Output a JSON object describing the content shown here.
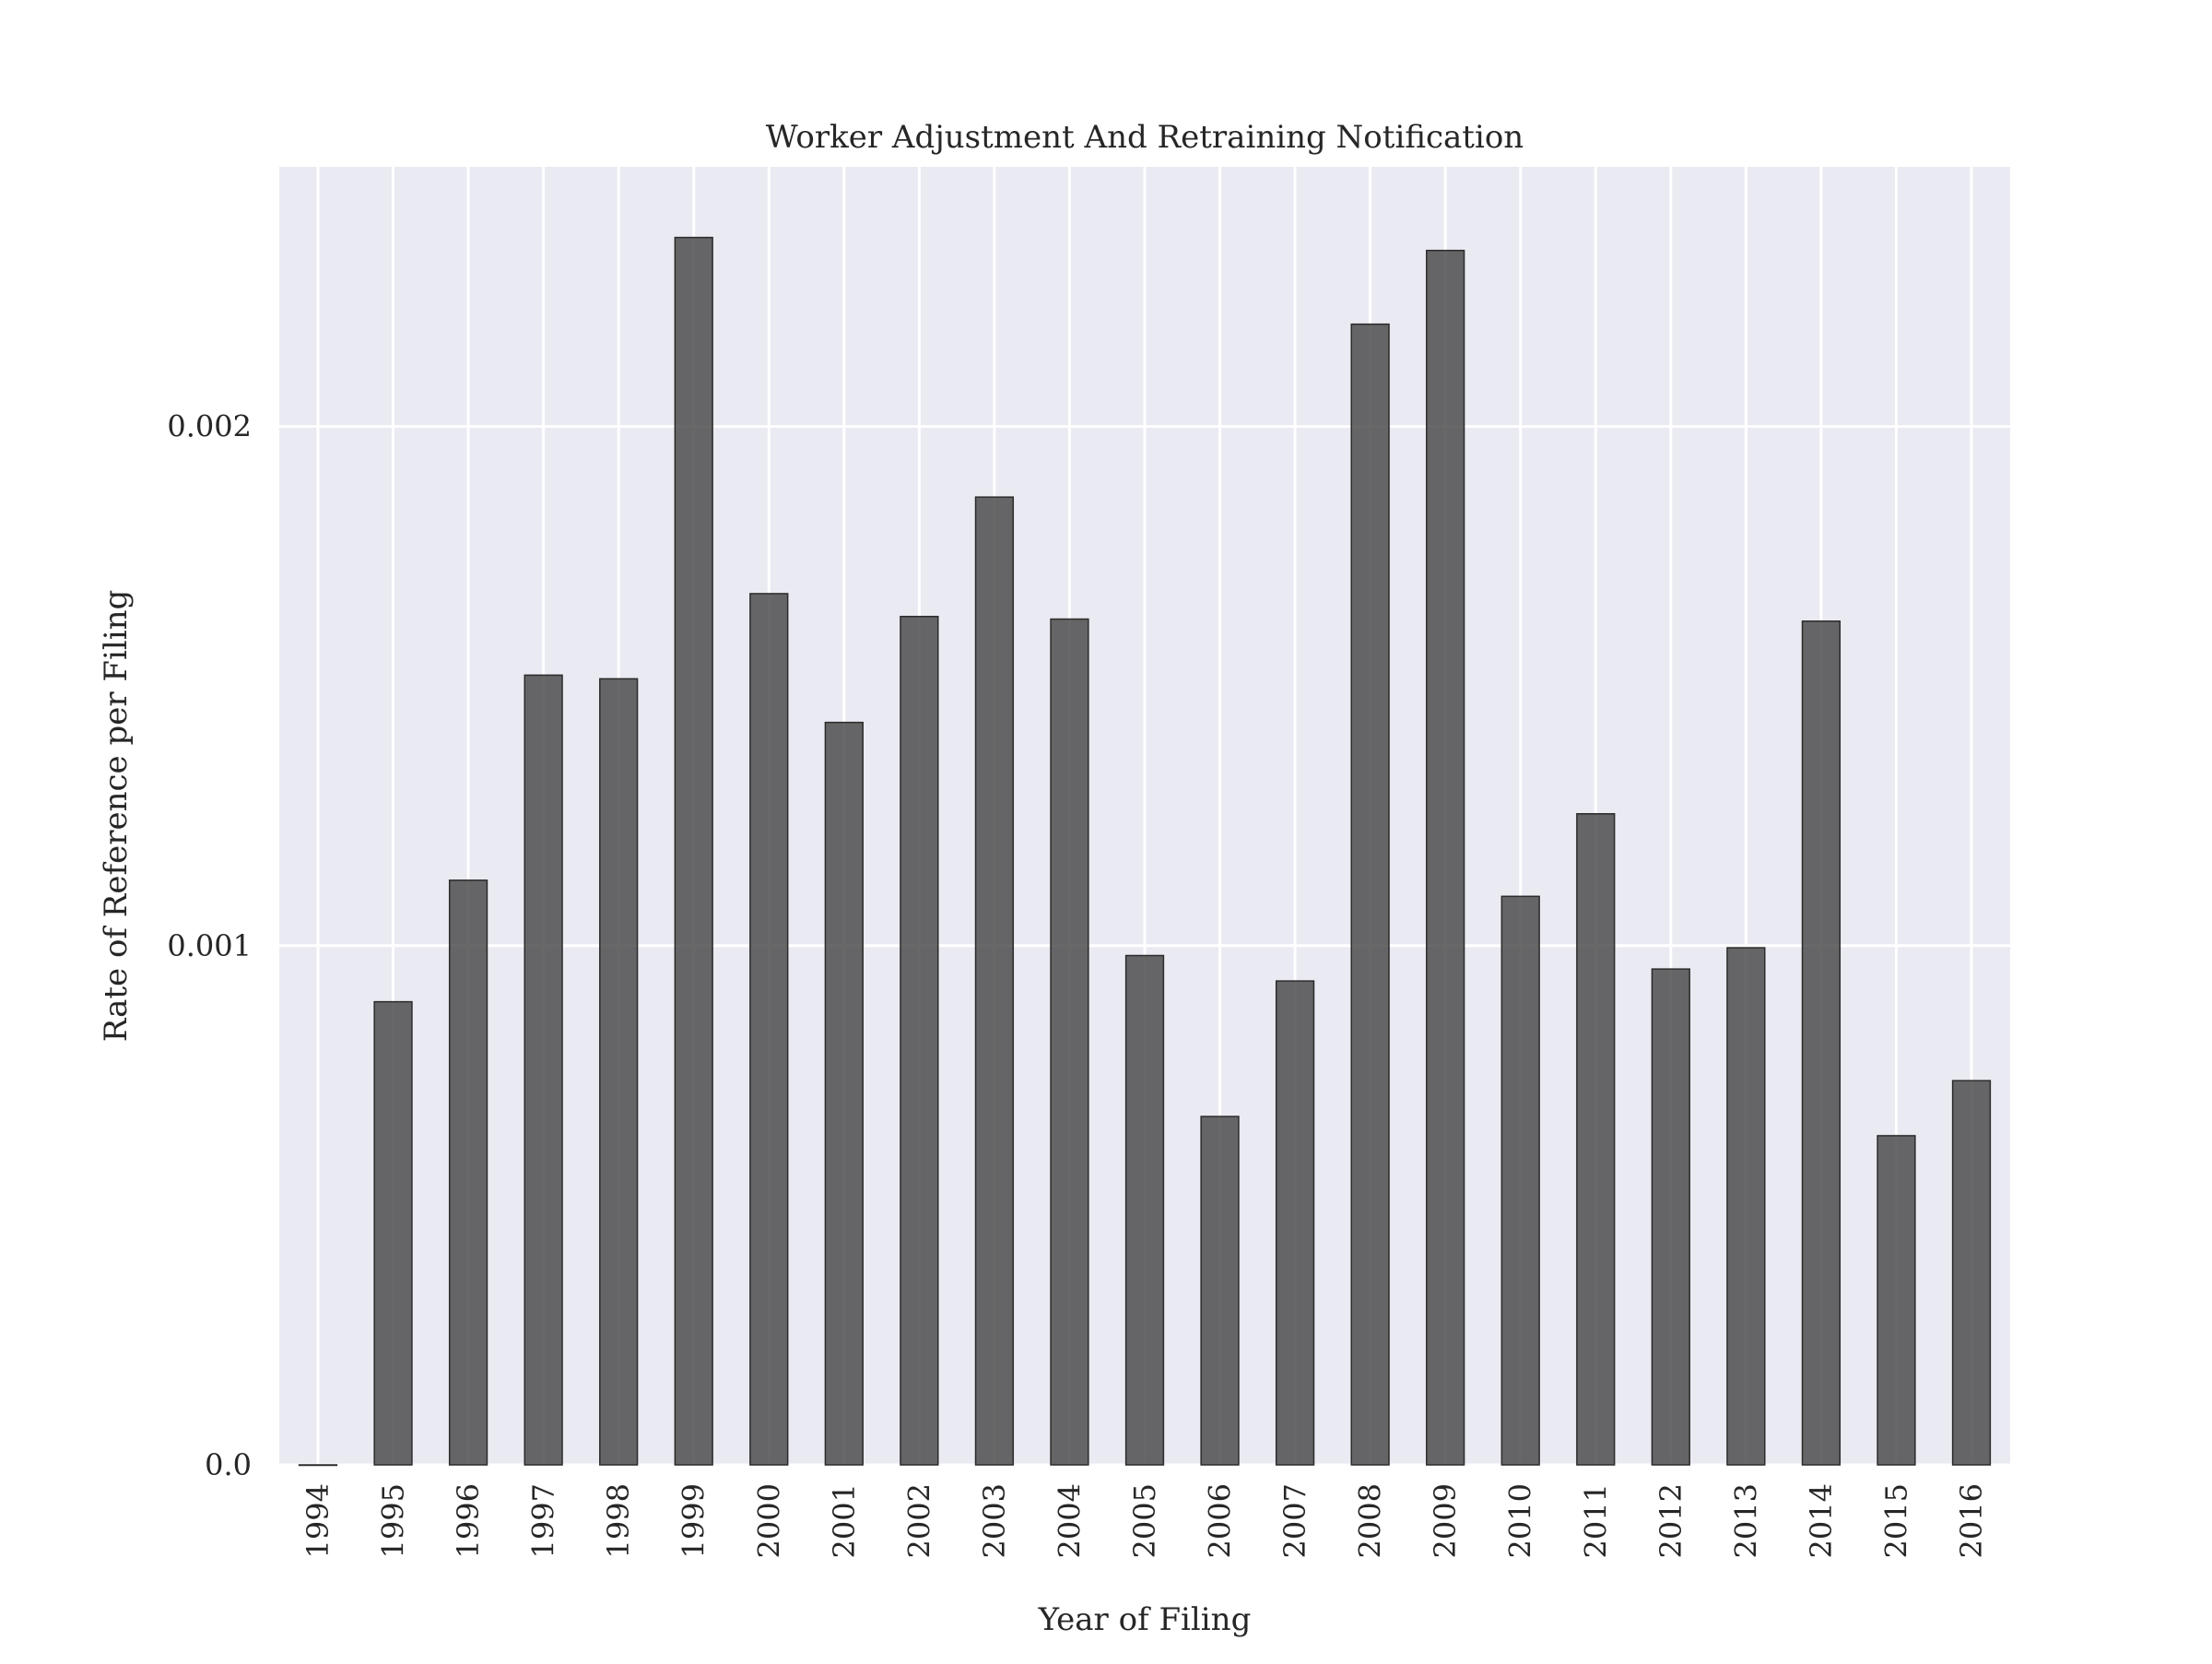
{
  "chart_data": {
    "type": "bar",
    "title": "Worker Adjustment And Retraining Notification",
    "xlabel": "Year of Filing",
    "ylabel": "Rate of Reference per Filing",
    "categories": [
      "1994",
      "1995",
      "1996",
      "1997",
      "1998",
      "1999",
      "2000",
      "2001",
      "2002",
      "2003",
      "2004",
      "2005",
      "2006",
      "2007",
      "2008",
      "2009",
      "2010",
      "2011",
      "2012",
      "2013",
      "2014",
      "2015",
      "2016"
    ],
    "values": [
      0.0,
      0.000892,
      0.001126,
      0.001521,
      0.001514,
      0.002364,
      0.001678,
      0.00143,
      0.001634,
      0.001864,
      0.001629,
      0.000981,
      0.000671,
      0.000932,
      0.002197,
      0.002339,
      0.001095,
      0.001254,
      0.000955,
      0.000996,
      0.001625,
      0.000634,
      0.00074
    ],
    "ylim": [
      0,
      0.0025
    ],
    "yticks": [
      0.0,
      0.001,
      0.002
    ],
    "ytick_labels": [
      "0.0",
      "0.001",
      "0.002"
    ],
    "grid": true,
    "colors": {
      "background": "#eaeaf2",
      "grid": "#ffffff",
      "bar_fill": "#4d4d4f",
      "bar_stroke": "#2b2b2b"
    }
  }
}
